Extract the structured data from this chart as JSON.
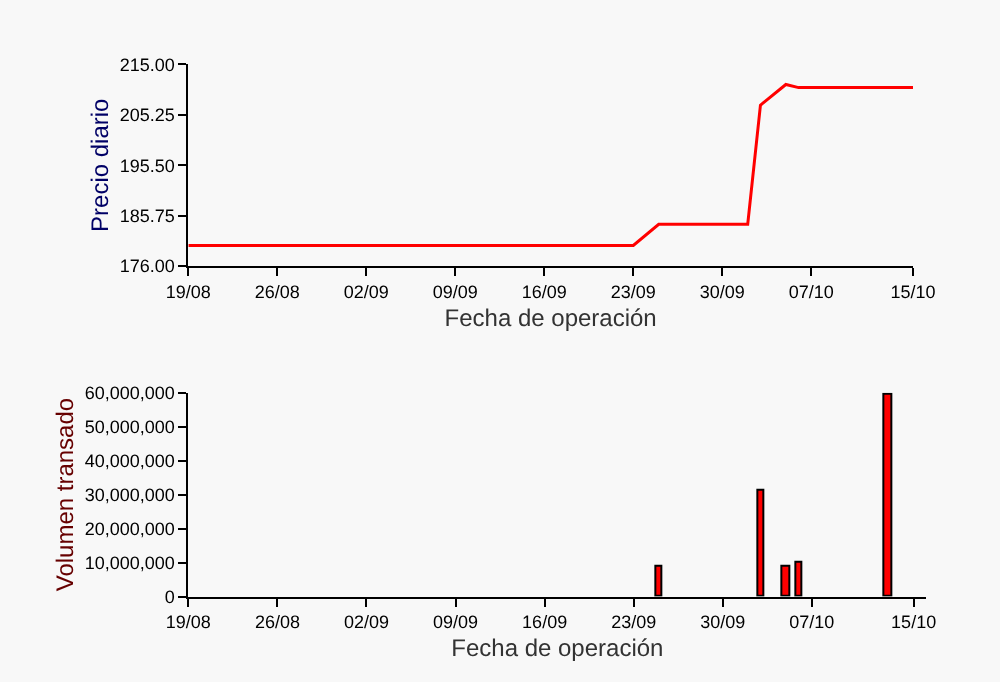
{
  "chart_data": [
    {
      "type": "line",
      "xlabel": "Fecha de operación",
      "ylabel": "Precio diario",
      "grid": false,
      "marker": "none",
      "x": [
        "--08-19",
        "--09-23",
        "--09-25",
        "--10-02",
        "--10-03",
        "--10-05",
        "--10-06",
        "--10-15"
      ],
      "series": [
        {
          "color": "#ff0000",
          "values": [
            180,
            180,
            184.1,
            184.1,
            207.1,
            211.1,
            210.5,
            210.5
          ]
        }
      ],
      "xlim": [
        "--08-19",
        "--10-15"
      ],
      "xticks": [
        {
          "value": "--08-19",
          "label": "19/08"
        },
        {
          "value": "--08-26",
          "label": "26/08"
        },
        {
          "value": "--09-02",
          "label": "02/09"
        },
        {
          "value": "--09-09",
          "label": "09/09"
        },
        {
          "value": "--09-16",
          "label": "16/09"
        },
        {
          "value": "--09-23",
          "label": "23/09"
        },
        {
          "value": "--09-30",
          "label": "30/09"
        },
        {
          "value": "--10-07",
          "label": "07/10"
        },
        {
          "value": "--10-15",
          "label": "15/10"
        }
      ],
      "ylim": [
        176,
        215
      ],
      "yticks": [
        {
          "value": 176,
          "label": "176.00"
        },
        {
          "value": 185.75,
          "label": "185.75"
        },
        {
          "value": 195.5,
          "label": "195.50"
        },
        {
          "value": 205.25,
          "label": "205.25"
        },
        {
          "value": 215,
          "label": "215.00"
        }
      ]
    },
    {
      "type": "bar",
      "xlabel": "Fecha de operación",
      "ylabel": "Volumen transado",
      "grid": false,
      "x": [
        "--09-25",
        "--10-03",
        "--10-05",
        "--10-06",
        "--10-13"
      ],
      "series": [
        {
          "color": "#ff0000",
          "values": [
            8900000,
            30900000,
            8900000,
            10100000,
            59400000
          ]
        }
      ],
      "xlim": [
        "--08-19",
        "--10-16"
      ],
      "xticks": [
        {
          "value": "--08-19",
          "label": "19/08"
        },
        {
          "value": "--08-26",
          "label": "26/08"
        },
        {
          "value": "--09-02",
          "label": "02/09"
        },
        {
          "value": "--09-09",
          "label": "09/09"
        },
        {
          "value": "--09-16",
          "label": "16/09"
        },
        {
          "value": "--09-23",
          "label": "23/09"
        },
        {
          "value": "--09-30",
          "label": "30/09"
        },
        {
          "value": "--10-07",
          "label": "07/10"
        },
        {
          "value": "--10-15",
          "label": "15/10"
        }
      ],
      "ylim": [
        0,
        60000000
      ],
      "yticks": [
        {
          "value": 0,
          "label": "0"
        },
        {
          "value": 10000000,
          "label": "10,000,000"
        },
        {
          "value": 20000000,
          "label": "20,000,000"
        },
        {
          "value": 30000000,
          "label": "30,000,000"
        },
        {
          "value": 40000000,
          "label": "40,000,000"
        },
        {
          "value": 50000000,
          "label": "50,000,000"
        },
        {
          "value": 60000000,
          "label": "60,000,000"
        }
      ]
    }
  ]
}
